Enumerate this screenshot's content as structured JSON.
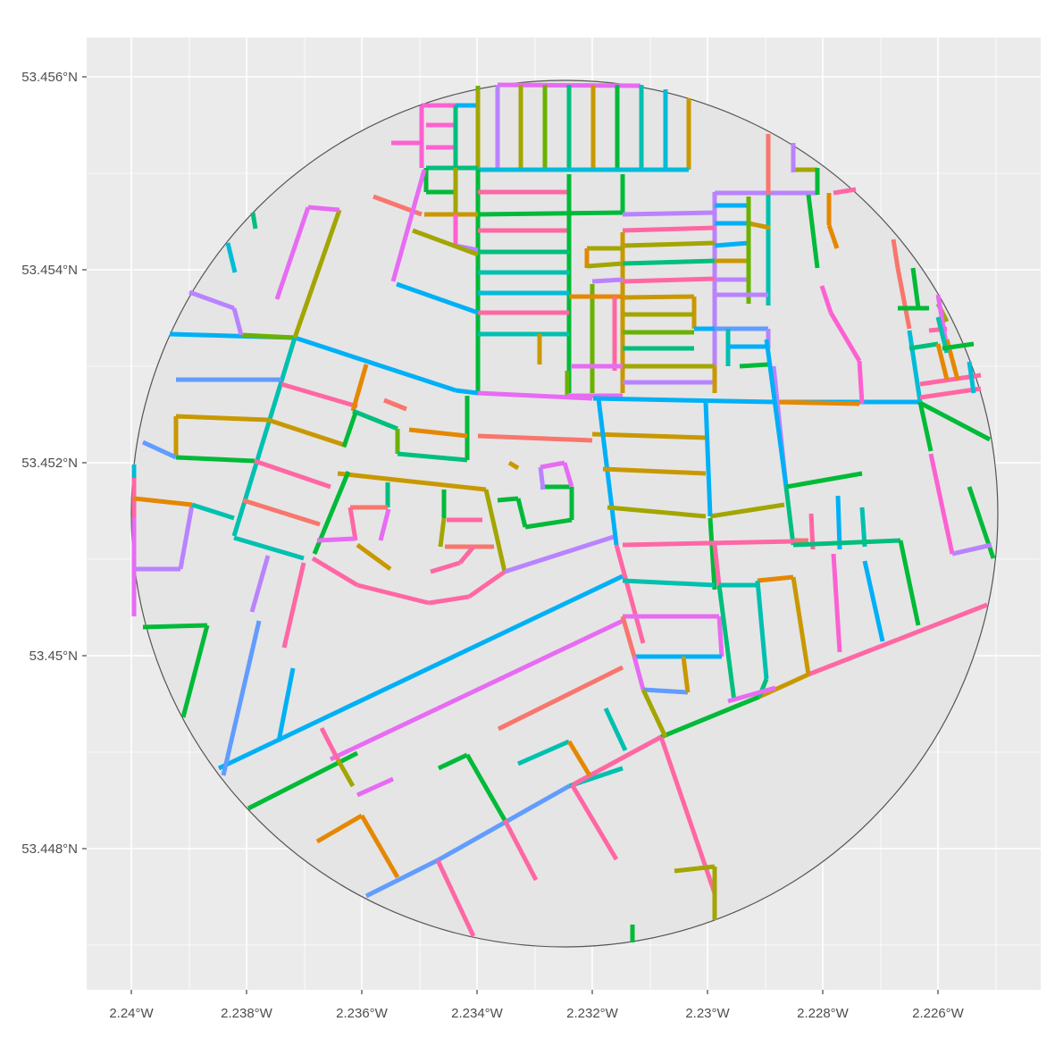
{
  "chart_data": {
    "type": "map",
    "x_ticks": [
      "2.24°W",
      "2.238°W",
      "2.236°W",
      "2.234°W",
      "2.232°W",
      "2.23°W",
      "2.228°W",
      "2.226°W"
    ],
    "y_ticks": [
      "53.456°N",
      "53.454°N",
      "53.452°N",
      "53.45°N",
      "53.448°N"
    ],
    "grid": true,
    "legend": "none",
    "colors": {
      "panel_bg": "#EBEBEB",
      "grid": "#FFFFFF",
      "circle_fill": "#E5E5E5",
      "circle_stroke": "#555555",
      "palette": [
        "#F8766D",
        "#E58700",
        "#C99800",
        "#A3A500",
        "#6BB100",
        "#00BA38",
        "#00BF7D",
        "#00C0AF",
        "#00BCD8",
        "#00B0F6",
        "#619CFF",
        "#B983FF",
        "#E76BF3",
        "#FD61D1",
        "#FF67A4"
      ]
    }
  }
}
